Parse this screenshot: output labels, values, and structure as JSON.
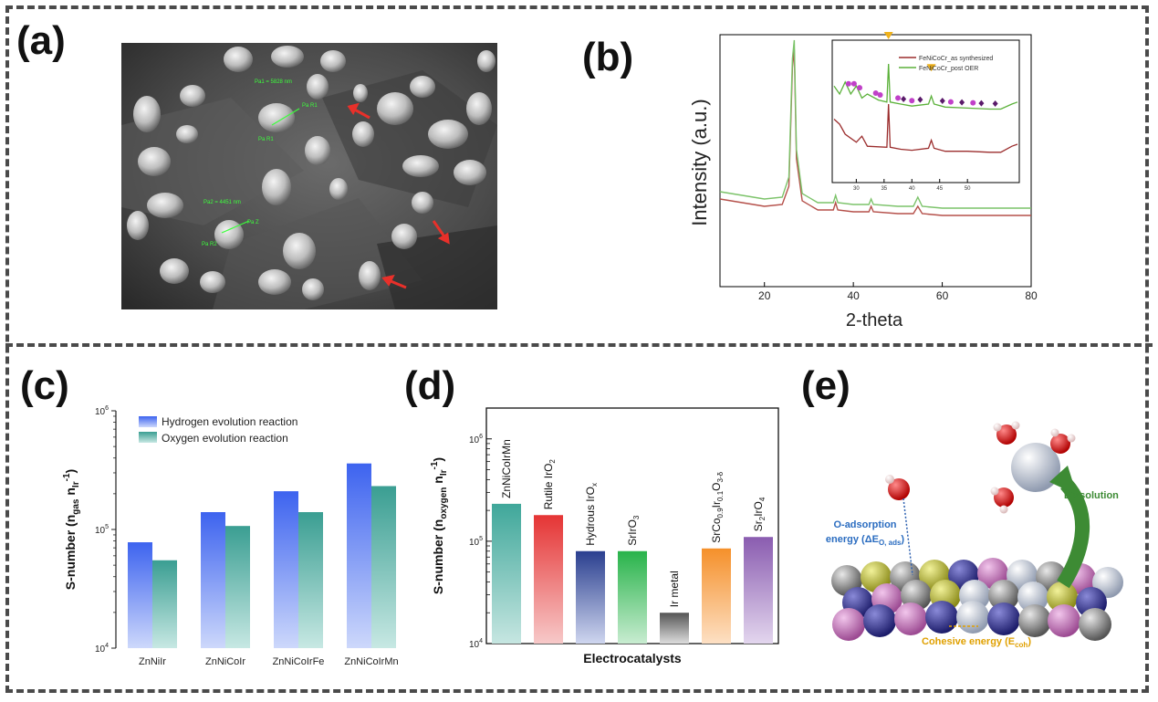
{
  "panels": {
    "a_label": "(a)",
    "b_label": "(b)",
    "c_label": "(c)",
    "d_label": "(d)",
    "e_label": "(e)"
  },
  "sem_annotations": {
    "pa1": "Pa1 = 5828 nm",
    "pa2": "Pa2 = 4451 nm",
    "pa_r1": "Pa R1",
    "pa_r2": "Pa R2",
    "pa_z": "Pa Z",
    "pa_z2": "Pa R1"
  },
  "chart_data": [
    {
      "panel": "b",
      "type": "line",
      "xlabel": "2-theta",
      "ylabel": "Intensity (a.u.)",
      "xlim": [
        10,
        80
      ],
      "xticks": [
        "20",
        "40",
        "60",
        "80"
      ],
      "series": [
        {
          "name": "FeNiCoCr_as synthesized",
          "color": "#b5504a",
          "x": [
            10,
            15,
            20,
            24,
            25.5,
            26.3,
            26.7,
            27.2,
            28.5,
            32,
            35.5,
            36,
            36.5,
            40,
            43.5,
            44,
            44.5,
            50,
            53.5,
            54.5,
            55.5,
            60,
            65,
            70,
            75,
            80
          ],
          "y": [
            0.18,
            0.16,
            0.14,
            0.15,
            0.25,
            0.9,
            1.0,
            0.4,
            0.17,
            0.12,
            0.12,
            0.16,
            0.12,
            0.11,
            0.11,
            0.14,
            0.11,
            0.1,
            0.1,
            0.14,
            0.1,
            0.09,
            0.09,
            0.09,
            0.09,
            0.09
          ]
        },
        {
          "name": "FeNiCoCr_post OER",
          "color": "#7cc36a",
          "x": [
            10,
            15,
            20,
            24,
            25.5,
            26.3,
            26.7,
            27.2,
            28.5,
            32,
            35.5,
            36,
            36.5,
            40,
            43.5,
            44,
            44.5,
            50,
            53.5,
            54.5,
            55.5,
            60,
            65,
            70,
            75,
            80
          ],
          "y": [
            0.22,
            0.2,
            0.18,
            0.19,
            0.3,
            0.95,
            1.05,
            0.45,
            0.21,
            0.16,
            0.16,
            0.2,
            0.16,
            0.15,
            0.15,
            0.18,
            0.15,
            0.14,
            0.14,
            0.19,
            0.14,
            0.13,
            0.13,
            0.13,
            0.13,
            0.13
          ]
        }
      ],
      "inset": {
        "legend": [
          "FeNiCoCr_as synthesized",
          "FeNiCoCr_post OER"
        ],
        "xticks": [
          "30",
          "35",
          "40",
          "45",
          "50"
        ],
        "xlim": [
          26,
          59
        ],
        "series": [
          {
            "name": "FeNiCoCr_as synthesized",
            "color": "#9b2d2d",
            "x": [
              26,
              27,
              28,
              30,
              31,
              32,
              35.5,
              35.8,
              36.1,
              38,
              40,
              43,
              43.5,
              44,
              46,
              50,
              54,
              56,
              58,
              59
            ],
            "y": [
              0.45,
              0.4,
              0.3,
              0.22,
              0.28,
              0.18,
              0.17,
              0.6,
              0.17,
              0.15,
              0.14,
              0.16,
              0.24,
              0.16,
              0.13,
              0.13,
              0.12,
              0.12,
              0.18,
              0.2
            ]
          },
          {
            "name": "FeNiCoCr_post OER",
            "color": "#5bb13a",
            "x": [
              26,
              27,
              28,
              29,
              30,
              31,
              32,
              34,
              35.5,
              35.8,
              36.1,
              38,
              40,
              43,
              43.5,
              44,
              46,
              50,
              54,
              56,
              58,
              59
            ],
            "y": [
              0.78,
              0.7,
              0.82,
              0.7,
              0.78,
              0.66,
              0.7,
              0.64,
              0.62,
              1.0,
              0.62,
              0.6,
              0.58,
              0.6,
              0.68,
              0.6,
              0.57,
              0.56,
              0.55,
              0.55,
              0.6,
              0.62
            ]
          }
        ],
        "markers": {
          "triangle_x": [
            35.8,
            43.5
          ],
          "circle_x": [
            28.6,
            29.6,
            30.6,
            33.5,
            34.3,
            37.5,
            40,
            47,
            51
          ],
          "diamond_x": [
            38.5,
            41.5,
            45.5,
            49,
            52.5,
            55
          ]
        }
      }
    },
    {
      "panel": "c",
      "type": "bar",
      "scale": "log",
      "ylabel": "S-number (n_gas n_Ir^-1)",
      "ylim": [
        10000,
        1000000
      ],
      "yticks": [
        "10^4",
        "10^5",
        "10^6"
      ],
      "categories": [
        "ZnNiIr",
        "ZnNiCoIr",
        "ZnNiCoIrFe",
        "ZnNiCoIrMn"
      ],
      "series": [
        {
          "name": "Hydrogen evolution reaction",
          "color": "#4a6ff0",
          "values": [
            78000,
            140000,
            210000,
            360000
          ]
        },
        {
          "name": "Oxygen evolution reaction",
          "color": "#3fa79a",
          "values": [
            55000,
            107000,
            140000,
            232000
          ]
        }
      ]
    },
    {
      "panel": "d",
      "type": "bar",
      "scale": "log",
      "xlabel": "Electrocatalysts",
      "ylabel": "S-number (n_oxygen n_Ir^-1)",
      "ylim": [
        10000,
        2000000
      ],
      "yticks": [
        "10^4",
        "10^5",
        "10^6"
      ],
      "categories": [
        "ZnNiCoIrMn",
        "Rutile IrO2",
        "Hydrous IrOx",
        "SrIrO3",
        "Ir metal",
        "SrCo0.9Ir0.1O3-δ",
        "Sr2IrO4"
      ],
      "values": [
        232000,
        180000,
        80000,
        80000,
        20000,
        85000,
        110000
      ],
      "colors": [
        "#3fa79a",
        "#e53434",
        "#2a3f8f",
        "#28b34a",
        "#555555",
        "#f5902a",
        "#8a5cb0"
      ]
    }
  ],
  "panel_b_text": {
    "xlabel": "2-theta",
    "ylabel": "Intensity (a.u.)",
    "legend_1": "FeNiCoCr_as synthesized",
    "legend_2": "FeNiCoCr_post OER"
  },
  "panel_c_text": {
    "ylabel_main": "S-number (n",
    "ylabel_sub1": "gas",
    "ylabel_mid": " n",
    "ylabel_sub2": "Ir",
    "ylabel_sup": "-1",
    "ylabel_end": ")",
    "legend_her": "Hydrogen evolution reaction",
    "legend_oer": "Oxygen evolution reaction"
  },
  "panel_d_text": {
    "ylabel_main": "S-number (n",
    "ylabel_sub1": "oxygen",
    "ylabel_mid": " n",
    "ylabel_sub2": "Ir",
    "ylabel_sup": "-1",
    "ylabel_end": ")",
    "xlabel": "Electrocatalysts"
  },
  "panel_e_text": {
    "o_adsorption_1": "O-adsorption",
    "o_adsorption_2": "energy (ΔE",
    "o_adsorption_sub": "O, ads",
    "o_adsorption_end": ")",
    "dissolution": "Dissolution",
    "cohesive": "Cohesive energy (E",
    "cohesive_sub": "coh",
    "cohesive_end": ")"
  }
}
